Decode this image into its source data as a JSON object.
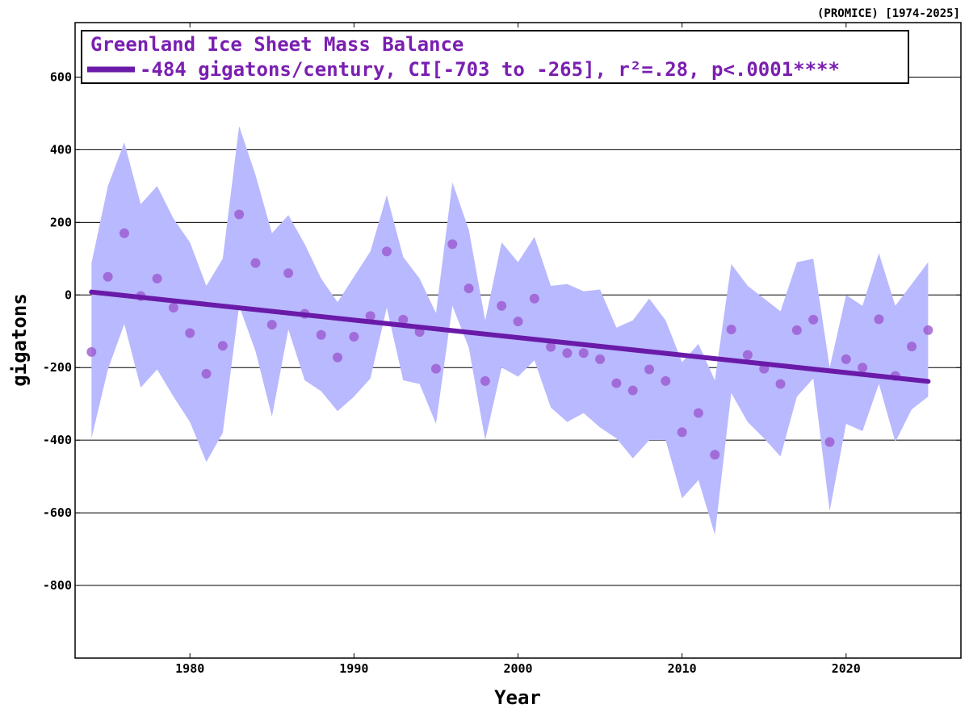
{
  "chart_data": {
    "type": "scatter",
    "title": "Greenland Ice Sheet Mass Balance",
    "source_note": "(PROMICE) [1974-2025]",
    "xlabel": "Year",
    "ylabel": "gigatons",
    "xlim": [
      1973,
      2027
    ],
    "ylim": [
      -1000,
      750
    ],
    "x_ticks": [
      1980,
      1990,
      2000,
      2010,
      2020
    ],
    "y_ticks": [
      600,
      400,
      200,
      0,
      -200,
      -400,
      -600,
      -800
    ],
    "grid": "horizontal",
    "legend_position": "top-left",
    "trend_label": "-484 gigatons/century, CI[-703 to -265], r²=.28, p<.0001****",
    "trend": {
      "x": [
        1974,
        2025
      ],
      "y": [
        8,
        -238
      ]
    },
    "colors": {
      "points": "#9b59d0",
      "band": "#b9b9ff",
      "trend": "#6a1aa8",
      "legend_text": "#7a1fb0"
    },
    "series": [
      {
        "x": [
          1974,
          1975,
          1976,
          1977,
          1978,
          1979,
          1980,
          1981,
          1982,
          1983,
          1984,
          1985,
          1986,
          1987,
          1988,
          1989,
          1990,
          1991,
          1992,
          1993,
          1994,
          1995,
          1996,
          1997,
          1998,
          1999,
          2000,
          2001,
          2002,
          2003,
          2004,
          2005,
          2006,
          2007,
          2008,
          2009,
          2010,
          2011,
          2012,
          2013,
          2014,
          2015,
          2016,
          2017,
          2018,
          2019,
          2020,
          2021,
          2022,
          2023,
          2024,
          2025
        ],
        "values": [
          -157,
          50,
          170,
          -3,
          45,
          -35,
          -105,
          -217,
          -140,
          222,
          88,
          -82,
          60,
          -52,
          -110,
          -172,
          -115,
          -58,
          120,
          -68,
          -102,
          -203,
          140,
          18,
          -237,
          -30,
          -73,
          -10,
          -143,
          -160,
          -160,
          -177,
          -243,
          -263,
          -205,
          -237,
          -378,
          -325,
          -440,
          -95,
          -165,
          -203,
          -245,
          -97,
          -68,
          -405,
          -177,
          -200,
          -67,
          -223,
          -142,
          -97
        ],
        "upper": [
          88,
          300,
          420,
          250,
          300,
          210,
          145,
          25,
          100,
          465,
          330,
          170,
          220,
          140,
          45,
          -20,
          50,
          120,
          275,
          105,
          45,
          -50,
          310,
          180,
          -70,
          145,
          90,
          160,
          25,
          30,
          10,
          15,
          -90,
          -70,
          -10,
          -70,
          -185,
          -135,
          -235,
          85,
          25,
          -10,
          -45,
          90,
          100,
          -200,
          0,
          -30,
          115,
          -30,
          30,
          90
        ],
        "lower": [
          -395,
          -205,
          -80,
          -255,
          -205,
          -280,
          -350,
          -460,
          -380,
          -30,
          -155,
          -335,
          -95,
          -235,
          -265,
          -320,
          -280,
          -230,
          -35,
          -235,
          -245,
          -355,
          -30,
          -145,
          -400,
          -200,
          -225,
          -180,
          -310,
          -350,
          -325,
          -365,
          -395,
          -450,
          -400,
          -400,
          -560,
          -510,
          -660,
          -270,
          -350,
          -395,
          -445,
          -280,
          -230,
          -595,
          -355,
          -375,
          -245,
          -405,
          -315,
          -280
        ]
      }
    ]
  }
}
